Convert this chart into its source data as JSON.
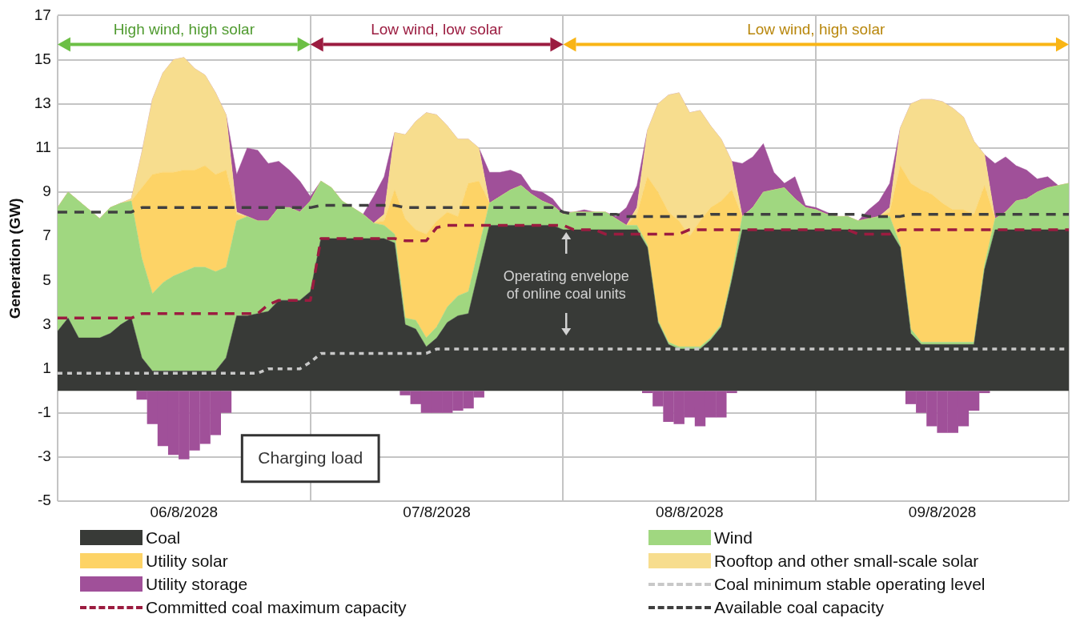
{
  "chart_data": {
    "type": "area",
    "stacked": true,
    "ylabel": "Generation (GW)",
    "categories": [
      null,
      null,
      null,
      null,
      null,
      null,
      null,
      null,
      null,
      null,
      null,
      null,
      "06/8/2028",
      null,
      null,
      null,
      null,
      null,
      null,
      null,
      null,
      null,
      null,
      null,
      null,
      null,
      null,
      null,
      null,
      null,
      null,
      null,
      null,
      null,
      null,
      null,
      "07/8/2028",
      null,
      null,
      null,
      null,
      null,
      null,
      null,
      null,
      null,
      null,
      null,
      null,
      null,
      null,
      null,
      null,
      null,
      null,
      null,
      null,
      null,
      null,
      null,
      "08/8/2028",
      null,
      null,
      null,
      null,
      null,
      null,
      null,
      null,
      null,
      null,
      null,
      null,
      null,
      null,
      null,
      null,
      null,
      null,
      null,
      null,
      null,
      null,
      null,
      "09/8/2028",
      null,
      null,
      null,
      null,
      null,
      null,
      null,
      null,
      null,
      null,
      null,
      null
    ],
    "ylim": [
      -5,
      17
    ],
    "yticks": [
      -5,
      -3,
      -1,
      1,
      3,
      5,
      7,
      9,
      11,
      13,
      15,
      17
    ],
    "grid": true,
    "legend": "bottom",
    "series": [
      {
        "name": "Coal",
        "color": "#383a37",
        "values": [
          2.7,
          3.3,
          2.4,
          2.4,
          2.4,
          2.6,
          3.0,
          3.3,
          1.5,
          0.9,
          0.9,
          0.9,
          0.9,
          0.9,
          0.9,
          0.9,
          1.5,
          3.4,
          3.4,
          3.5,
          3.6,
          4.1,
          4.1,
          4.1,
          4.5,
          6.9,
          6.9,
          6.9,
          6.9,
          6.9,
          6.9,
          6.9,
          6.7,
          3.0,
          2.8,
          2.0,
          2.4,
          3.1,
          3.4,
          3.5,
          5.5,
          7.5,
          7.5,
          7.5,
          7.5,
          7.5,
          7.5,
          7.5,
          7.3,
          7.3,
          7.3,
          7.3,
          7.3,
          7.3,
          7.3,
          7.3,
          6.5,
          3.1,
          2.1,
          1.9,
          1.9,
          1.9,
          2.3,
          2.9,
          5.0,
          7.3,
          7.3,
          7.3,
          7.3,
          7.3,
          7.3,
          7.3,
          7.3,
          7.3,
          7.3,
          7.3,
          7.3,
          7.3,
          7.3,
          7.3,
          6.5,
          2.6,
          2.1,
          2.1,
          2.1,
          2.1,
          2.1,
          2.1,
          5.5,
          7.3,
          7.3,
          7.3,
          7.3,
          7.3,
          7.3,
          7.3,
          7.3
        ]
      },
      {
        "name": "Wind",
        "color": "#a0d780",
        "values": [
          5.6,
          5.7,
          6.2,
          5.8,
          5.4,
          5.7,
          5.5,
          5.3,
          4.5,
          3.5,
          4.0,
          4.3,
          4.5,
          4.7,
          4.7,
          4.5,
          4.1,
          4.3,
          4.5,
          4.2,
          4.1,
          4.2,
          4.2,
          4.0,
          4.1,
          2.6,
          2.3,
          1.7,
          1.4,
          1.1,
          0.7,
          0.6,
          0.4,
          0.3,
          0.4,
          0.4,
          0.5,
          0.7,
          0.9,
          1.0,
          1.0,
          1.0,
          1.3,
          1.6,
          1.8,
          1.4,
          1.1,
          0.9,
          0.7,
          0.8,
          0.8,
          0.8,
          0.8,
          0.5,
          0.2,
          0.2,
          0.1,
          0.1,
          0.1,
          0.1,
          0.1,
          0.1,
          0.1,
          0.1,
          0.2,
          0.6,
          1.0,
          1.7,
          1.8,
          1.9,
          1.4,
          1.0,
          0.9,
          0.7,
          0.6,
          0.6,
          0.4,
          0.5,
          0.6,
          0.6,
          0.1,
          0.2,
          0.1,
          0.1,
          0.1,
          0.1,
          0.1,
          0.1,
          0.2,
          0.5,
          0.8,
          1.3,
          1.4,
          1.7,
          1.9,
          2.0,
          2.1
        ]
      },
      {
        "name": "Utility solar",
        "color": "#fdd366",
        "values": [
          0,
          0,
          0,
          0,
          0,
          0,
          0,
          0,
          3.2,
          5.4,
          5.0,
          4.7,
          4.6,
          4.4,
          4.6,
          4.4,
          4.4,
          0.3,
          0,
          0,
          0,
          0,
          0,
          0,
          0,
          0,
          0,
          0,
          0,
          0,
          0,
          0.2,
          2.0,
          4.5,
          4.1,
          4.7,
          4.8,
          4.3,
          3.6,
          4.9,
          3.0,
          0,
          0,
          0,
          0,
          0,
          0,
          0,
          0,
          0,
          0,
          0,
          0,
          0,
          0,
          0.5,
          3.1,
          5.8,
          5.9,
          5.7,
          5.0,
          5.7,
          5.9,
          5.6,
          3.9,
          0,
          0,
          0,
          0,
          0,
          0,
          0,
          0,
          0,
          0,
          0,
          0,
          0,
          0,
          0.2,
          3.6,
          6.6,
          6.9,
          6.7,
          6.3,
          6.0,
          6.0,
          5.8,
          3.6,
          0,
          0,
          0,
          0,
          0,
          0,
          0,
          0
        ]
      },
      {
        "name": "Rooftop and other small-scale solar",
        "color": "#f7dd8e",
        "values": [
          0,
          0,
          0,
          0,
          0,
          0,
          0,
          0.1,
          1.6,
          3.4,
          4.5,
          5.1,
          5.1,
          4.6,
          4.1,
          3.7,
          2.5,
          0.1,
          0,
          0,
          0,
          0,
          0,
          0,
          0,
          0,
          0,
          0,
          0,
          0,
          0,
          0.3,
          2.6,
          3.8,
          4.9,
          5.5,
          4.8,
          3.9,
          3.5,
          2.0,
          1.5,
          0,
          0,
          0,
          0,
          0,
          0,
          0,
          0,
          0,
          0,
          0,
          0,
          0,
          0,
          0.3,
          2.1,
          4.0,
          5.3,
          5.8,
          5.6,
          5.0,
          3.7,
          2.8,
          1.3,
          0,
          0,
          0,
          0,
          0,
          0,
          0,
          0,
          0,
          0,
          0,
          0,
          0,
          0,
          0.2,
          1.7,
          3.6,
          4.1,
          4.3,
          4.6,
          4.6,
          4.2,
          3.3,
          1.4,
          0,
          0,
          0,
          0,
          0,
          0,
          0,
          0
        ]
      },
      {
        "name": "Utility storage",
        "color": "#a05099",
        "values": [
          0,
          0,
          0,
          0,
          0,
          0,
          0,
          0,
          0,
          0,
          0,
          0,
          0,
          0,
          0,
          0,
          0,
          1.7,
          3.1,
          3.2,
          2.6,
          2.1,
          1.7,
          1.4,
          0.2,
          0,
          0,
          0,
          0,
          0,
          1.2,
          1.7,
          0,
          0,
          0,
          0,
          0,
          0,
          0,
          0,
          0,
          1.4,
          1.1,
          0.9,
          0.5,
          0.2,
          0.4,
          0.3,
          0.1,
          0,
          0.1,
          0,
          0,
          0.1,
          0.8,
          1.0,
          0,
          0,
          0,
          0,
          0,
          0,
          0,
          0,
          0,
          2.4,
          2.3,
          2.2,
          0.8,
          0.2,
          1.0,
          0.1,
          0.1,
          0.1,
          0,
          0,
          0,
          0.4,
          0.7,
          1.1,
          0,
          0,
          0,
          0,
          0,
          0,
          0,
          0,
          0,
          2.5,
          2.5,
          1.6,
          1.3,
          0.6,
          0.5,
          0,
          0
        ]
      },
      {
        "type": "bar",
        "color": "#a05099",
        "values": [
          null,
          null,
          null,
          null,
          null,
          null,
          null,
          null,
          -0.4,
          -1.5,
          -2.5,
          -2.9,
          -3.1,
          -2.7,
          -2.4,
          -2.0,
          -1.0,
          null,
          null,
          null,
          null,
          null,
          null,
          null,
          null,
          null,
          null,
          null,
          null,
          null,
          null,
          null,
          null,
          -0.2,
          -0.6,
          -1.0,
          -1.0,
          -1.0,
          -0.9,
          -0.8,
          -0.3,
          null,
          null,
          null,
          null,
          null,
          null,
          null,
          null,
          null,
          null,
          null,
          null,
          null,
          null,
          null,
          -0.1,
          -0.7,
          -1.4,
          -1.5,
          -1.2,
          -1.6,
          -1.2,
          -1.2,
          -0.1,
          null,
          null,
          null,
          null,
          null,
          null,
          null,
          null,
          null,
          null,
          null,
          null,
          null,
          null,
          null,
          null,
          -0.6,
          -1.0,
          -1.6,
          -1.9,
          -1.9,
          -1.6,
          -0.9,
          -0.1,
          null,
          null,
          null,
          null,
          null,
          null,
          null,
          null
        ]
      },
      {
        "name": "Coal minimum stable operating level",
        "type": "line",
        "line_style": "dotted",
        "color": "#c8c8c8",
        "values": [
          0.8,
          0.8,
          0.8,
          0.8,
          0.8,
          0.8,
          0.8,
          0.8,
          0.8,
          0.8,
          0.8,
          0.8,
          0.8,
          0.8,
          0.8,
          0.8,
          0.8,
          0.8,
          0.8,
          0.8,
          1.0,
          1.0,
          1.0,
          1.0,
          1.3,
          1.7,
          1.7,
          1.7,
          1.7,
          1.7,
          1.7,
          1.7,
          1.7,
          1.7,
          1.7,
          1.7,
          1.9,
          1.9,
          1.9,
          1.9,
          1.9,
          1.9,
          1.9,
          1.9,
          1.9,
          1.9,
          1.9,
          1.9,
          1.9,
          1.9,
          1.9,
          1.9,
          1.9,
          1.9,
          1.9,
          1.9,
          1.9,
          1.9,
          1.9,
          1.9,
          1.9,
          1.9,
          1.9,
          1.9,
          1.9,
          1.9,
          1.9,
          1.9,
          1.9,
          1.9,
          1.9,
          1.9,
          1.9,
          1.9,
          1.9,
          1.9,
          1.9,
          1.9,
          1.9,
          1.9,
          1.9,
          1.9,
          1.9,
          1.9,
          1.9,
          1.9,
          1.9,
          1.9,
          1.9,
          1.9,
          1.9,
          1.9,
          1.9,
          1.9,
          1.9,
          1.9,
          1.9
        ]
      },
      {
        "name": "Committed coal maximum capacity",
        "type": "line",
        "line_style": "dashed",
        "color": "#9b1c40",
        "values": [
          3.3,
          3.3,
          3.3,
          3.3,
          3.3,
          3.3,
          3.3,
          3.3,
          3.5,
          3.5,
          3.5,
          3.5,
          3.5,
          3.5,
          3.5,
          3.5,
          3.5,
          3.5,
          3.5,
          3.5,
          3.9,
          4.1,
          4.1,
          4.1,
          4.1,
          6.9,
          6.9,
          6.9,
          6.9,
          6.9,
          6.9,
          6.9,
          6.9,
          6.8,
          6.8,
          6.8,
          7.4,
          7.5,
          7.5,
          7.5,
          7.5,
          7.5,
          7.5,
          7.5,
          7.5,
          7.5,
          7.5,
          7.5,
          7.5,
          7.3,
          7.3,
          7.3,
          7.1,
          7.1,
          7.1,
          7.1,
          7.1,
          7.1,
          7.1,
          7.1,
          7.3,
          7.3,
          7.3,
          7.3,
          7.3,
          7.3,
          7.3,
          7.3,
          7.3,
          7.3,
          7.3,
          7.3,
          7.3,
          7.3,
          7.3,
          7.3,
          7.1,
          7.1,
          7.1,
          7.1,
          7.3,
          7.3,
          7.3,
          7.3,
          7.3,
          7.3,
          7.3,
          7.3,
          7.3,
          7.3,
          7.3,
          7.3,
          7.3,
          7.3,
          7.3,
          7.3,
          7.3
        ]
      },
      {
        "name": "Available coal capacity",
        "type": "line",
        "line_style": "dashed",
        "color": "#404040",
        "values": [
          8.1,
          8.1,
          8.1,
          8.1,
          8.1,
          8.1,
          8.1,
          8.1,
          8.3,
          8.3,
          8.3,
          8.3,
          8.3,
          8.3,
          8.3,
          8.3,
          8.3,
          8.3,
          8.3,
          8.3,
          8.3,
          8.3,
          8.3,
          8.3,
          8.3,
          8.4,
          8.4,
          8.4,
          8.4,
          8.4,
          8.4,
          8.4,
          8.4,
          8.3,
          8.3,
          8.3,
          8.3,
          8.3,
          8.3,
          8.3,
          8.3,
          8.3,
          8.3,
          8.3,
          8.3,
          8.3,
          8.3,
          8.3,
          8.1,
          8.0,
          8.0,
          8.0,
          8.0,
          8.0,
          7.9,
          7.9,
          7.9,
          7.9,
          7.9,
          7.9,
          7.9,
          7.9,
          8.0,
          8.0,
          8.0,
          8.0,
          8.0,
          8.0,
          8.0,
          8.0,
          8.0,
          8.0,
          8.0,
          8.0,
          8.0,
          8.0,
          8.0,
          7.9,
          7.9,
          7.9,
          7.9,
          8.0,
          8.0,
          8.0,
          8.0,
          8.0,
          8.0,
          8.0,
          8.0,
          8.0,
          8.0,
          8.0,
          8.0,
          8.0,
          8.0,
          8.0,
          8.0
        ]
      }
    ],
    "annotations": [
      "High wind, high solar",
      "Low wind, low solar",
      "Low wind, high solar",
      {
        "text": "Operating envelope of online coal units",
        "y": 7.3
      },
      "Charging load"
    ]
  }
}
